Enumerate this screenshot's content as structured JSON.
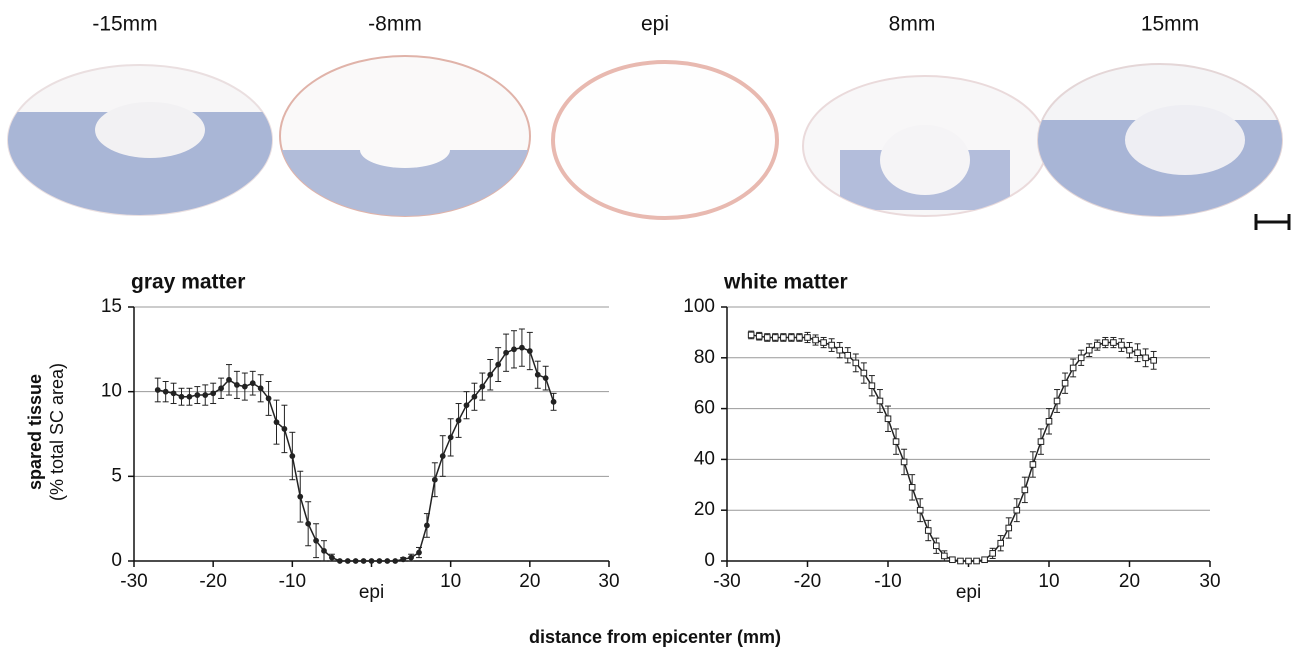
{
  "figure": {
    "section_labels": [
      "-15mm",
      "-8mm",
      "epi",
      "8mm",
      "15mm"
    ],
    "ylabel": [
      "spared tissue",
      "(% total SC area)"
    ],
    "xlabel": "distance from epicenter (mm)"
  },
  "chart_data": [
    {
      "type": "line",
      "title": "gray matter",
      "x": [
        -27,
        -26,
        -25,
        -24,
        -23,
        -22,
        -21,
        -20,
        -19,
        -18,
        -17,
        -16,
        -15,
        -14,
        -13,
        -12,
        -11,
        -10,
        -9,
        -8,
        -7,
        -6,
        -5,
        -4,
        -3,
        -2,
        -1,
        0,
        1,
        2,
        3,
        4,
        5,
        6,
        7,
        8,
        9,
        10,
        11,
        12,
        13,
        14,
        15,
        16,
        17,
        18,
        19,
        20,
        21,
        22,
        23
      ],
      "series": [
        {
          "color": "#222222",
          "marker": "circle",
          "marker_fill": "#222222",
          "values": [
            10.1,
            10.0,
            9.9,
            9.7,
            9.7,
            9.8,
            9.8,
            9.9,
            10.2,
            10.7,
            10.4,
            10.3,
            10.5,
            10.2,
            9.6,
            8.2,
            7.8,
            6.2,
            3.8,
            2.2,
            1.2,
            0.6,
            0.2,
            0,
            0,
            0,
            0,
            0,
            0,
            0,
            0,
            0.1,
            0.2,
            0.5,
            2.1,
            4.8,
            6.2,
            7.3,
            8.3,
            9.2,
            9.7,
            10.3,
            11.0,
            11.6,
            12.3,
            12.5,
            12.6,
            12.4,
            11.0,
            10.8,
            9.4
          ],
          "errors": [
            0.7,
            0.6,
            0.6,
            0.5,
            0.5,
            0.5,
            0.6,
            0.6,
            0.6,
            0.9,
            0.8,
            0.8,
            0.7,
            0.8,
            1.0,
            1.3,
            1.4,
            1.4,
            1.5,
            1.3,
            1.0,
            0.6,
            0.2,
            0,
            0,
            0,
            0,
            0,
            0,
            0,
            0,
            0.1,
            0.2,
            0.3,
            0.7,
            1.0,
            1.2,
            1.1,
            1.0,
            0.8,
            0.8,
            0.8,
            0.9,
            1.0,
            1.1,
            1.1,
            1.1,
            1.1,
            0.8,
            0.7,
            0.5
          ]
        }
      ],
      "xlim": [
        -30,
        30
      ],
      "xticks": [
        -30,
        -20,
        -10,
        {
          "value": 0,
          "label": "epi"
        },
        10,
        20,
        30
      ],
      "ylim": [
        0,
        15
      ],
      "yticks": [
        0,
        5,
        10,
        15
      ],
      "grid": true
    },
    {
      "type": "line",
      "title": "white matter",
      "x": [
        -27,
        -26,
        -25,
        -24,
        -23,
        -22,
        -21,
        -20,
        -19,
        -18,
        -17,
        -16,
        -15,
        -14,
        -13,
        -12,
        -11,
        -10,
        -9,
        -8,
        -7,
        -6,
        -5,
        -4,
        -3,
        -2,
        -1,
        0,
        1,
        2,
        3,
        4,
        5,
        6,
        7,
        8,
        9,
        10,
        11,
        12,
        13,
        14,
        15,
        16,
        17,
        18,
        19,
        20,
        21,
        22,
        23
      ],
      "series": [
        {
          "color": "#222222",
          "marker": "square",
          "marker_fill": "#ffffff",
          "values": [
            89,
            88.5,
            88,
            88,
            88,
            88,
            88,
            88,
            87,
            86,
            85,
            83,
            81,
            78,
            74,
            69,
            63,
            56,
            47,
            39,
            29,
            20,
            12,
            6,
            2,
            0.5,
            0,
            0,
            0,
            0.5,
            3,
            7,
            13,
            20,
            28,
            38,
            47,
            55,
            63,
            70,
            76,
            80,
            83,
            85,
            86,
            86,
            85,
            83,
            82,
            80,
            79
          ],
          "errors": [
            1.5,
            1.5,
            1.5,
            1.5,
            1.5,
            1.5,
            1.5,
            2,
            2,
            2,
            2.5,
            3,
            3,
            3.5,
            4,
            4,
            4.5,
            5,
            5,
            5,
            5,
            4.5,
            4,
            3,
            2,
            1,
            0.5,
            0.5,
            0.5,
            1,
            2,
            3,
            4,
            4.5,
            5,
            5,
            5,
            5,
            4.5,
            4,
            3.5,
            3,
            2.5,
            2,
            2,
            2,
            2.5,
            3,
            3.5,
            3.5,
            3.5
          ]
        }
      ],
      "xlim": [
        -30,
        30
      ],
      "xticks": [
        -30,
        -20,
        -10,
        {
          "value": 0,
          "label": "epi"
        },
        10,
        20,
        30
      ],
      "ylim": [
        0,
        100
      ],
      "yticks": [
        0,
        20,
        40,
        60,
        80,
        100
      ],
      "grid": true
    }
  ]
}
